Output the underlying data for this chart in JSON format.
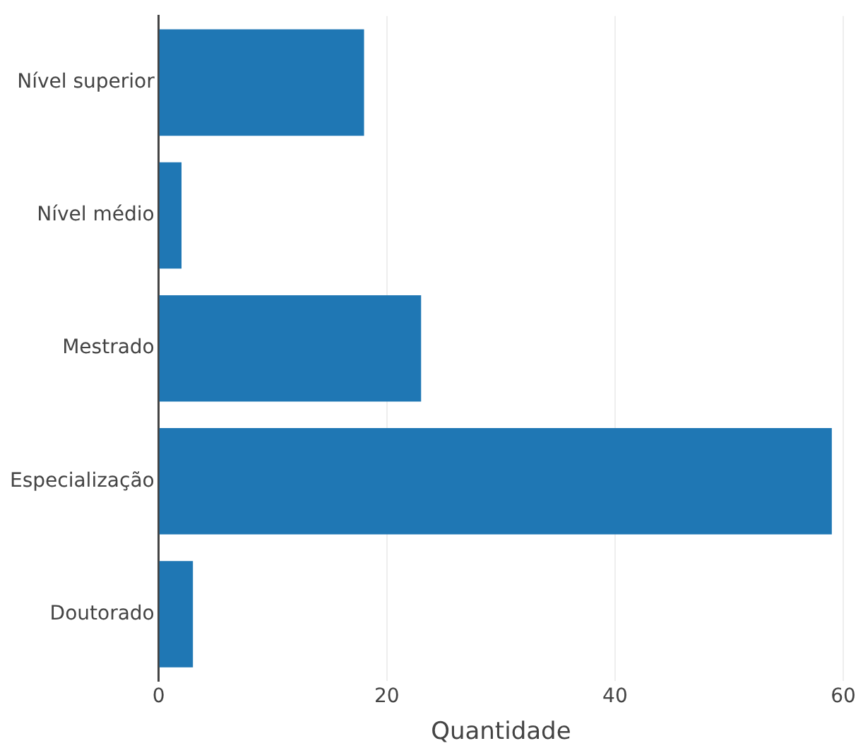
{
  "chart_data": {
    "type": "bar",
    "orientation": "horizontal",
    "xlabel": "Quantidade",
    "categories": [
      "Nível superior",
      "Nível médio",
      "Mestrado",
      "Especialização",
      "Doutorado"
    ],
    "values": [
      18,
      2,
      23,
      59,
      3
    ],
    "color": "#1f77b4",
    "xlim": [
      0,
      60
    ],
    "xticks": [
      0,
      20,
      40,
      60
    ],
    "grid": "x",
    "legend": false
  }
}
